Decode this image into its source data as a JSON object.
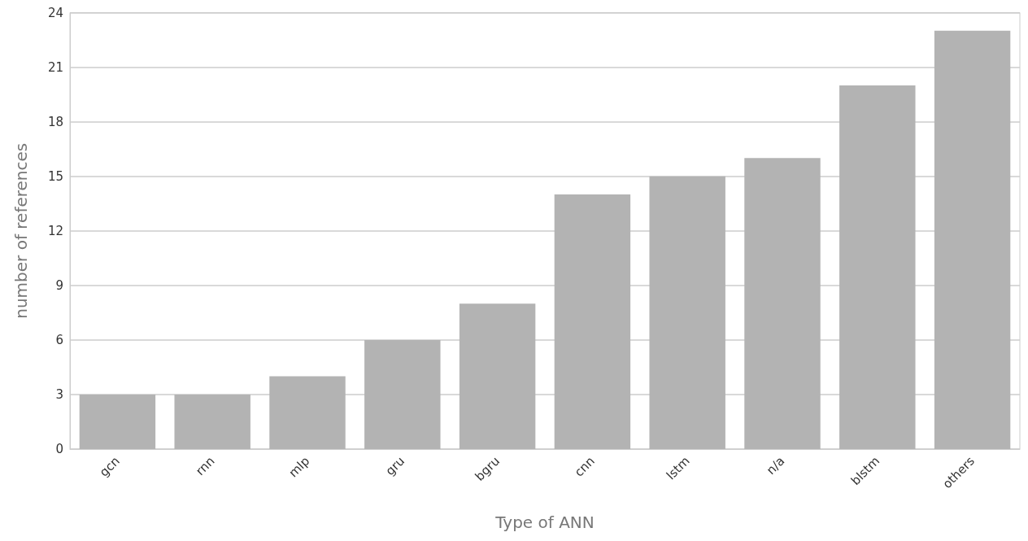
{
  "chart_data": {
    "type": "bar",
    "xlabel": "Type of ANN",
    "ylabel": "number of references",
    "categories": [
      "gcn",
      "rnn",
      "mlp",
      "gru",
      "bgru",
      "cnn",
      "lstm",
      "n/a",
      "blstm",
      "others"
    ],
    "values": [
      3,
      3,
      4,
      6,
      8,
      14,
      15,
      16,
      20,
      23
    ],
    "color": "#b3b3b3",
    "ylim": [
      0,
      24
    ],
    "yticks": [
      0,
      3,
      6,
      9,
      12,
      15,
      18,
      21,
      24
    ],
    "grid": "y"
  }
}
